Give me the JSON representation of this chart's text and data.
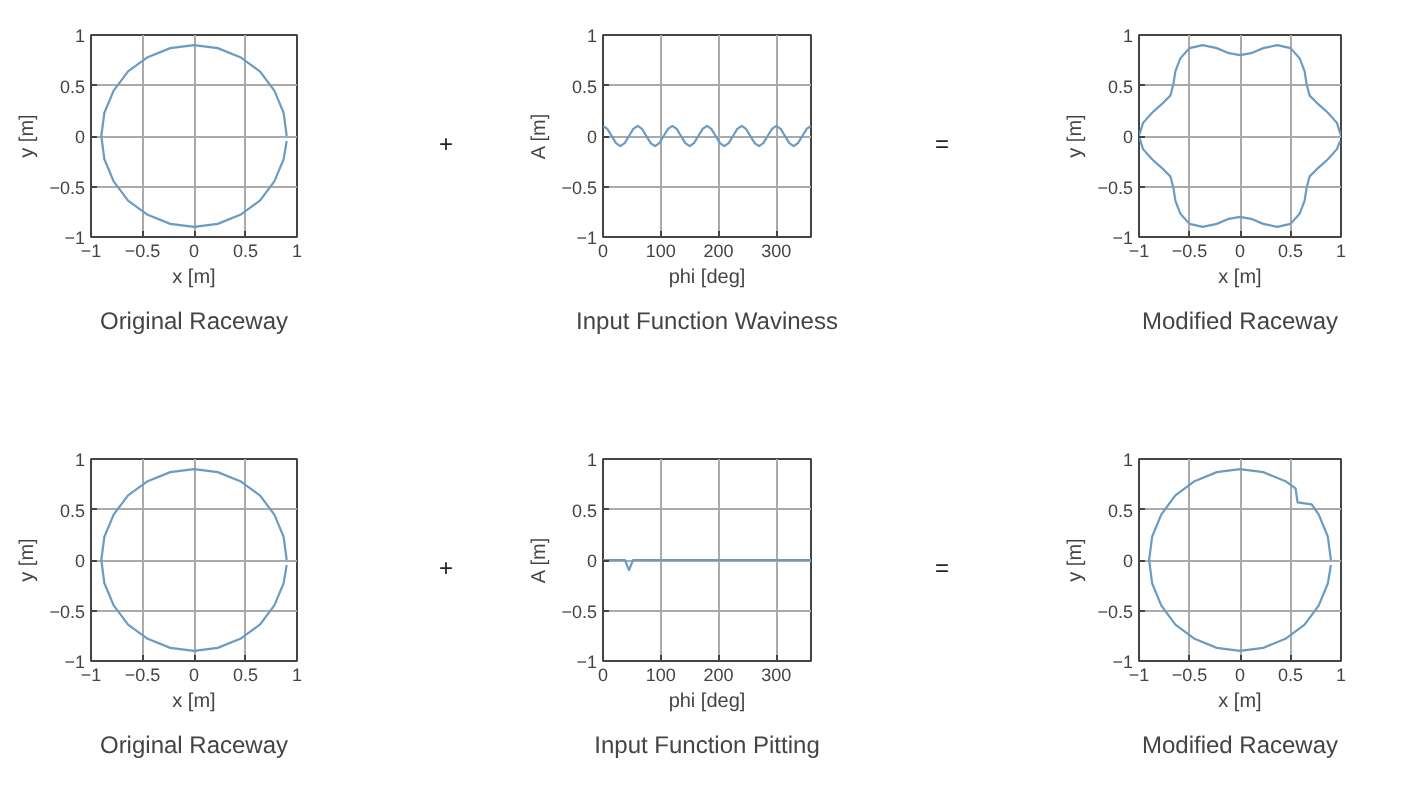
{
  "chart_data": [
    {
      "type": "line",
      "xlabel": "x [m]",
      "ylabel": "y [m]",
      "xlim": [
        -1,
        1
      ],
      "ylim": [
        -1,
        1
      ],
      "xticks": [
        -1,
        -0.5,
        0,
        0.5,
        1
      ],
      "yticks": [
        -1,
        -0.5,
        0,
        0.5,
        1
      ],
      "grid": true,
      "annotations": [
        "Original Raceway",
        "+"
      ],
      "series": [
        {
          "color": "#6a9bc3",
          "x": [
            0.9,
            0.87,
            0.78,
            0.64,
            0.45,
            0.23,
            0,
            -0.23,
            -0.45,
            -0.64,
            -0.78,
            -0.87,
            -0.9,
            -0.87,
            -0.78,
            -0.64,
            -0.45,
            -0.23,
            0,
            0.23,
            0.45,
            0.64,
            0.78,
            0.87,
            0.9
          ],
          "values": [
            0,
            0.23,
            0.45,
            0.64,
            0.78,
            0.87,
            0.9,
            0.87,
            0.78,
            0.64,
            0.45,
            0.23,
            0,
            -0.23,
            -0.45,
            -0.64,
            -0.78,
            -0.87,
            -0.9,
            -0.87,
            -0.78,
            -0.64,
            -0.45,
            -0.23,
            -0.05
          ]
        }
      ]
    },
    {
      "type": "line",
      "xlabel": "phi [deg]",
      "ylabel": "A [m]",
      "xlim": [
        0,
        360
      ],
      "ylim": [
        -1,
        1
      ],
      "xticks": [
        0,
        100,
        200,
        300
      ],
      "yticks": [
        -1,
        -0.5,
        0,
        0.5,
        1
      ],
      "grid": true,
      "annotations": [
        "Input Function Waviness"
      ],
      "series": [
        {
          "color": "#6a9bc3",
          "x": [
            0,
            7.5,
            15,
            22.5,
            30,
            37.5,
            45,
            52.5,
            60,
            67.5,
            75,
            82.5,
            90,
            97.5,
            105,
            112.5,
            120,
            127.5,
            135,
            142.5,
            150,
            157.5,
            165,
            172.5,
            180,
            187.5,
            195,
            202.5,
            210,
            217.5,
            225,
            232.5,
            240,
            247.5,
            255,
            262.5,
            270,
            277.5,
            285,
            292.5,
            300,
            307.5,
            315,
            322.5,
            330,
            337.5,
            345,
            352.5,
            360
          ],
          "values": [
            0.1,
            0.07,
            0,
            -0.07,
            -0.1,
            -0.07,
            0,
            0.07,
            0.1,
            0.07,
            0,
            -0.07,
            -0.1,
            -0.07,
            0,
            0.07,
            0.1,
            0.07,
            0,
            -0.07,
            -0.1,
            -0.07,
            0,
            0.07,
            0.1,
            0.07,
            0,
            -0.07,
            -0.1,
            -0.07,
            0,
            0.07,
            0.1,
            0.07,
            0,
            -0.07,
            -0.1,
            -0.07,
            0,
            0.07,
            0.1,
            0.07,
            0,
            -0.07,
            -0.1,
            -0.07,
            0,
            0.07,
            0.1
          ]
        }
      ]
    },
    {
      "type": "line",
      "xlabel": "x [m]",
      "ylabel": "y [m]",
      "xlim": [
        -1,
        1
      ],
      "ylim": [
        -1,
        1
      ],
      "xticks": [
        -1,
        -0.5,
        0,
        0.5,
        1
      ],
      "yticks": [
        -1,
        -0.5,
        0,
        0.5,
        1
      ],
      "grid": true,
      "annotations": [
        "Modified Raceway",
        "="
      ],
      "series": [
        {
          "color": "#6a9bc3",
          "x": [
            1,
            0.96,
            0.87,
            0.77,
            0.69,
            0.66,
            0.64,
            0.59,
            0.5,
            0.37,
            0.23,
            0.11,
            0,
            -0.11,
            -0.23,
            -0.37,
            -0.5,
            -0.59,
            -0.64,
            -0.66,
            -0.69,
            -0.77,
            -0.87,
            -0.96,
            -1,
            -0.96,
            -0.87,
            -0.77,
            -0.69,
            -0.66,
            -0.64,
            -0.59,
            -0.5,
            -0.37,
            -0.23,
            -0.11,
            0,
            0.11,
            0.23,
            0.37,
            0.5,
            0.59,
            0.64,
            0.66,
            0.69,
            0.77,
            0.87,
            0.96,
            0.99
          ],
          "values": [
            0,
            0.13,
            0.23,
            0.32,
            0.4,
            0.51,
            0.64,
            0.77,
            0.87,
            0.9,
            0.87,
            0.82,
            0.8,
            0.82,
            0.87,
            0.9,
            0.87,
            0.77,
            0.64,
            0.51,
            0.4,
            0.32,
            0.23,
            0.13,
            0,
            -0.13,
            -0.23,
            -0.32,
            -0.4,
            -0.51,
            -0.64,
            -0.77,
            -0.87,
            -0.9,
            -0.87,
            -0.82,
            -0.8,
            -0.82,
            -0.87,
            -0.9,
            -0.87,
            -0.77,
            -0.64,
            -0.51,
            -0.4,
            -0.32,
            -0.23,
            -0.13,
            -0.05
          ]
        }
      ]
    },
    {
      "type": "line",
      "xlabel": "x [m]",
      "ylabel": "y [m]",
      "xlim": [
        -1,
        1
      ],
      "ylim": [
        -1,
        1
      ],
      "xticks": [
        -1,
        -0.5,
        0,
        0.5,
        1
      ],
      "yticks": [
        -1,
        -0.5,
        0,
        0.5,
        1
      ],
      "grid": true,
      "annotations": [
        "Original Raceway",
        "+"
      ],
      "series": [
        {
          "color": "#6a9bc3",
          "x": [
            0.9,
            0.87,
            0.78,
            0.64,
            0.45,
            0.23,
            0,
            -0.23,
            -0.45,
            -0.64,
            -0.78,
            -0.87,
            -0.9,
            -0.87,
            -0.78,
            -0.64,
            -0.45,
            -0.23,
            0,
            0.23,
            0.45,
            0.64,
            0.78,
            0.87,
            0.9
          ],
          "values": [
            0,
            0.23,
            0.45,
            0.64,
            0.78,
            0.87,
            0.9,
            0.87,
            0.78,
            0.64,
            0.45,
            0.23,
            0,
            -0.23,
            -0.45,
            -0.64,
            -0.78,
            -0.87,
            -0.9,
            -0.87,
            -0.78,
            -0.64,
            -0.45,
            -0.23,
            -0.05
          ]
        }
      ]
    },
    {
      "type": "line",
      "xlabel": "phi [deg]",
      "ylabel": "A [m]",
      "xlim": [
        0,
        360
      ],
      "ylim": [
        -1,
        1
      ],
      "xticks": [
        0,
        100,
        200,
        300
      ],
      "yticks": [
        -1,
        -0.5,
        0,
        0.5,
        1
      ],
      "grid": true,
      "annotations": [
        "Input Function Pitting"
      ],
      "series": [
        {
          "color": "#6a9bc3",
          "x": [
            0,
            38,
            45,
            52,
            360
          ],
          "values": [
            0,
            0,
            -0.1,
            0,
            0
          ]
        }
      ]
    },
    {
      "type": "line",
      "xlabel": "x [m]",
      "ylabel": "y [m]",
      "xlim": [
        -1,
        1
      ],
      "ylim": [
        -1,
        1
      ],
      "xticks": [
        -1,
        -0.5,
        0,
        0.5,
        1
      ],
      "yticks": [
        -1,
        -0.5,
        0,
        0.5,
        1
      ],
      "grid": true,
      "annotations": [
        "Modified Raceway",
        "="
      ],
      "series": [
        {
          "color": "#6a9bc3",
          "x": [
            0.9,
            0.87,
            0.78,
            0.71,
            0.57,
            0.55,
            0.45,
            0.23,
            0,
            -0.23,
            -0.45,
            -0.64,
            -0.78,
            -0.87,
            -0.9,
            -0.87,
            -0.78,
            -0.64,
            -0.45,
            -0.23,
            0,
            0.23,
            0.45,
            0.64,
            0.78,
            0.87,
            0.9
          ],
          "values": [
            0,
            0.23,
            0.45,
            0.55,
            0.57,
            0.71,
            0.78,
            0.87,
            0.9,
            0.87,
            0.78,
            0.64,
            0.45,
            0.23,
            0,
            -0.23,
            -0.45,
            -0.64,
            -0.78,
            -0.87,
            -0.9,
            -0.87,
            -0.78,
            -0.64,
            -0.45,
            -0.23,
            -0.05
          ]
        }
      ]
    }
  ]
}
